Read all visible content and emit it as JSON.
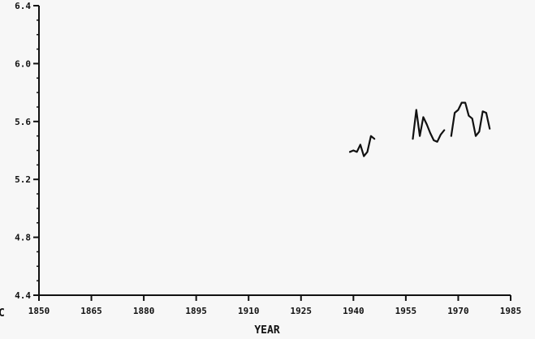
{
  "chart_data": {
    "type": "line",
    "title": "",
    "xlabel": "YEAR",
    "ylabel": "",
    "xlim": [
      1850,
      1985
    ],
    "ylim": [
      4.4,
      6.4
    ],
    "x_ticks": [
      1850,
      1865,
      1880,
      1895,
      1910,
      1925,
      1940,
      1955,
      1970,
      1985
    ],
    "x_tick_labels": [
      "1850",
      "1865",
      "1880",
      "1895",
      "1910",
      "1925",
      "1940",
      "1955",
      "1970",
      "1985"
    ],
    "y_ticks": [
      4.4,
      4.8,
      5.2,
      5.6,
      6.0,
      6.4
    ],
    "y_tick_labels": [
      "4.4",
      "4.8",
      "5.2",
      "5.6",
      "6.0",
      "6.4"
    ],
    "y_minor_step": 0.1,
    "grid": false,
    "line_color": "#111111",
    "corner_mark": "C",
    "series": [
      {
        "segments": [
          [
            [
              1939,
              5.39
            ],
            [
              1940,
              5.4
            ],
            [
              1941,
              5.39
            ],
            [
              1942,
              5.44
            ],
            [
              1943,
              5.36
            ],
            [
              1944,
              5.39
            ],
            [
              1945,
              5.5
            ],
            [
              1946,
              5.48
            ]
          ],
          [
            [
              1957,
              5.48
            ],
            [
              1958,
              5.68
            ],
            [
              1959,
              5.5
            ],
            [
              1960,
              5.63
            ],
            [
              1961,
              5.58
            ],
            [
              1962,
              5.52
            ],
            [
              1963,
              5.47
            ],
            [
              1964,
              5.46
            ],
            [
              1965,
              5.51
            ],
            [
              1966,
              5.54
            ]
          ],
          [
            [
              1968,
              5.5
            ],
            [
              1969,
              5.66
            ],
            [
              1970,
              5.68
            ],
            [
              1971,
              5.73
            ],
            [
              1972,
              5.73
            ],
            [
              1973,
              5.64
            ],
            [
              1974,
              5.62
            ],
            [
              1975,
              5.5
            ],
            [
              1976,
              5.53
            ],
            [
              1977,
              5.67
            ],
            [
              1978,
              5.66
            ],
            [
              1979,
              5.55
            ]
          ]
        ]
      }
    ]
  }
}
